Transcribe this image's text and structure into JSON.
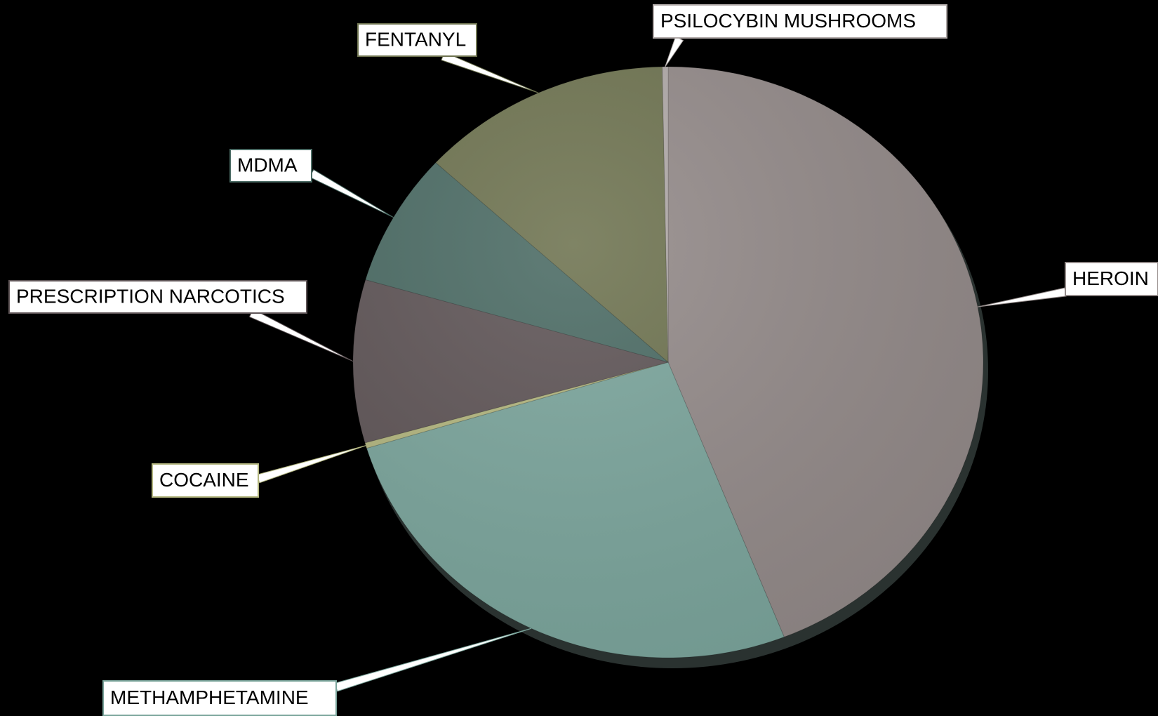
{
  "chart_data": {
    "type": "pie",
    "categories": [
      "HEROIN",
      "METHAMPHETAMINE",
      "COCAINE",
      "PRESCRIPTION NARCOTICS",
      "MDMA",
      "FENTANYL",
      "PSILOCYBIN MUSHROOMS"
    ],
    "values": [
      44,
      26.3,
      0.3,
      8.9,
      7.3,
      12.9,
      0.3
    ],
    "colors": [
      "#938a89",
      "#7ba59c",
      "#b3b67f",
      "#5f5557",
      "#4b6b64",
      "#6e7350",
      "#b0a9a8"
    ]
  }
}
